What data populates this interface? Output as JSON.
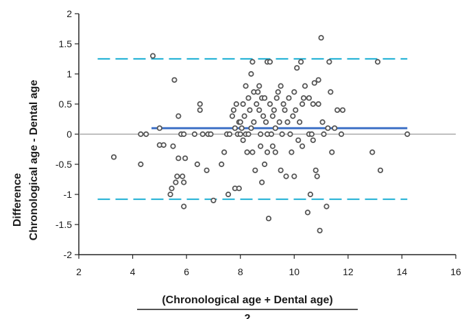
{
  "chart_data": {
    "type": "scatter",
    "xlabel_numerator": "(Chronological age + Dental age)",
    "xlabel_denominator": "2",
    "ylabel_line1": "Difference",
    "ylabel_line2": "Chronological age - Dental age",
    "xlim": [
      2,
      16
    ],
    "ylim": [
      -2,
      2
    ],
    "xticks": [
      2,
      4,
      6,
      8,
      10,
      12,
      14,
      16
    ],
    "yticks": [
      2,
      1.5,
      1,
      0.5,
      0,
      -0.5,
      -1,
      -1.5,
      -2
    ],
    "grid": false,
    "mean_line": 0.1,
    "upper_limit": 1.25,
    "lower_limit": -1.08,
    "colors": {
      "mean": "#3b6fc6",
      "limits": "#27b3d6",
      "points": "#555555",
      "zero": "#999999"
    },
    "points": [
      [
        3.3,
        -0.38
      ],
      [
        4.3,
        -0.5
      ],
      [
        4.3,
        0.0
      ],
      [
        4.5,
        0.0
      ],
      [
        4.75,
        1.3
      ],
      [
        5.0,
        0.1
      ],
      [
        5.0,
        -0.18
      ],
      [
        5.15,
        -0.18
      ],
      [
        5.4,
        -1.0
      ],
      [
        5.45,
        -0.9
      ],
      [
        5.5,
        -0.2
      ],
      [
        5.55,
        0.9
      ],
      [
        5.6,
        -0.8
      ],
      [
        5.65,
        -0.7
      ],
      [
        5.7,
        0.3
      ],
      [
        5.7,
        -0.4
      ],
      [
        5.8,
        0.0
      ],
      [
        5.85,
        -0.7
      ],
      [
        5.9,
        0.0
      ],
      [
        5.9,
        -0.8
      ],
      [
        5.9,
        -1.2
      ],
      [
        5.95,
        -0.4
      ],
      [
        6.3,
        0.0
      ],
      [
        6.4,
        -0.5
      ],
      [
        6.5,
        0.4
      ],
      [
        6.5,
        0.5
      ],
      [
        6.6,
        0.0
      ],
      [
        6.75,
        -0.6
      ],
      [
        6.8,
        0.0
      ],
      [
        6.9,
        0.0
      ],
      [
        7.0,
        -1.1
      ],
      [
        7.3,
        -0.5
      ],
      [
        7.4,
        -0.3
      ],
      [
        7.5,
        0.0
      ],
      [
        7.55,
        -1.0
      ],
      [
        7.6,
        0.0
      ],
      [
        7.7,
        0.3
      ],
      [
        7.75,
        0.4
      ],
      [
        7.8,
        0.1
      ],
      [
        7.8,
        -0.9
      ],
      [
        7.85,
        0.5
      ],
      [
        7.9,
        0.0
      ],
      [
        7.95,
        0.2
      ],
      [
        7.95,
        -0.9
      ],
      [
        8.0,
        0.2
      ],
      [
        8.0,
        0.0
      ],
      [
        8.05,
        0.1
      ],
      [
        8.1,
        0.5
      ],
      [
        8.1,
        -0.1
      ],
      [
        8.15,
        0.3
      ],
      [
        8.2,
        0.8
      ],
      [
        8.2,
        0.0
      ],
      [
        8.25,
        -0.3
      ],
      [
        8.3,
        0.6
      ],
      [
        8.3,
        0.0
      ],
      [
        8.35,
        0.4
      ],
      [
        8.4,
        1.0
      ],
      [
        8.4,
        0.1
      ],
      [
        8.45,
        1.2
      ],
      [
        8.45,
        -0.3
      ],
      [
        8.5,
        0.7
      ],
      [
        8.5,
        0.2
      ],
      [
        8.55,
        -0.6
      ],
      [
        8.6,
        0.5
      ],
      [
        8.65,
        0.7
      ],
      [
        8.7,
        0.8
      ],
      [
        8.7,
        0.4
      ],
      [
        8.75,
        0.0
      ],
      [
        8.75,
        -0.2
      ],
      [
        8.8,
        0.6
      ],
      [
        8.8,
        -0.8
      ],
      [
        8.85,
        0.3
      ],
      [
        8.9,
        0.6
      ],
      [
        8.9,
        -0.5
      ],
      [
        8.95,
        0.2
      ],
      [
        9.0,
        1.2
      ],
      [
        9.0,
        0.0
      ],
      [
        9.0,
        -0.3
      ],
      [
        9.05,
        -1.4
      ],
      [
        9.1,
        0.5
      ],
      [
        9.1,
        1.2
      ],
      [
        9.15,
        0.0
      ],
      [
        9.2,
        -0.2
      ],
      [
        9.2,
        0.3
      ],
      [
        9.25,
        0.4
      ],
      [
        9.3,
        0.1
      ],
      [
        9.3,
        -0.3
      ],
      [
        9.35,
        0.6
      ],
      [
        9.4,
        0.7
      ],
      [
        9.45,
        0.2
      ],
      [
        9.5,
        -0.6
      ],
      [
        9.5,
        0.8
      ],
      [
        9.55,
        0.0
      ],
      [
        9.6,
        0.5
      ],
      [
        9.65,
        0.4
      ],
      [
        9.7,
        -0.7
      ],
      [
        9.75,
        0.2
      ],
      [
        9.8,
        0.6
      ],
      [
        9.85,
        0.0
      ],
      [
        9.9,
        -0.3
      ],
      [
        9.95,
        0.3
      ],
      [
        10.0,
        0.7
      ],
      [
        10.0,
        -0.7
      ],
      [
        10.05,
        0.4
      ],
      [
        10.1,
        1.1
      ],
      [
        10.15,
        -0.1
      ],
      [
        10.2,
        0.2
      ],
      [
        10.25,
        1.2
      ],
      [
        10.3,
        0.5
      ],
      [
        10.3,
        -0.2
      ],
      [
        10.35,
        0.6
      ],
      [
        10.4,
        0.8
      ],
      [
        10.5,
        -1.3
      ],
      [
        10.55,
        0.0
      ],
      [
        10.55,
        0.6
      ],
      [
        10.6,
        -1.0
      ],
      [
        10.65,
        0.0
      ],
      [
        10.7,
        0.5
      ],
      [
        10.7,
        -0.1
      ],
      [
        10.75,
        0.85
      ],
      [
        10.8,
        -0.6
      ],
      [
        10.85,
        -0.7
      ],
      [
        10.9,
        0.5
      ],
      [
        10.9,
        0.9
      ],
      [
        10.95,
        -1.6
      ],
      [
        11.0,
        1.6
      ],
      [
        11.05,
        0.2
      ],
      [
        11.1,
        0.0
      ],
      [
        11.2,
        -1.2
      ],
      [
        11.25,
        0.1
      ],
      [
        11.3,
        1.2
      ],
      [
        11.35,
        0.7
      ],
      [
        11.4,
        -0.3
      ],
      [
        11.5,
        0.1
      ],
      [
        11.6,
        0.4
      ],
      [
        11.75,
        0.0
      ],
      [
        11.8,
        0.4
      ],
      [
        12.9,
        -0.3
      ],
      [
        13.1,
        1.2
      ],
      [
        13.2,
        -0.6
      ],
      [
        14.2,
        0.0
      ]
    ]
  }
}
